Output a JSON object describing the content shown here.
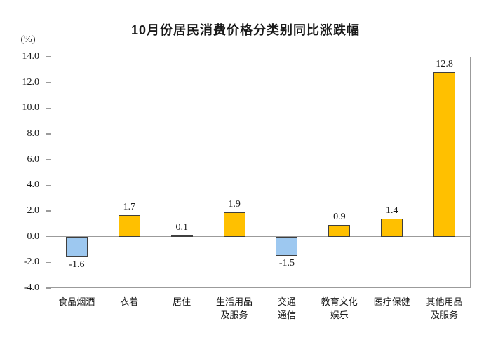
{
  "header": {
    "title": "10月份居民消费价格分类别同比涨跌幅",
    "unit_label": "(%)"
  },
  "chart_data": {
    "type": "bar",
    "title": "10月份居民消费价格分类别同比涨跌幅",
    "ylabel": "(%)",
    "xlabel": "",
    "categories": [
      "食品烟酒",
      "衣着",
      "居住",
      "生活用品及服务",
      "交通通信",
      "教育文化娱乐",
      "医疗保健",
      "其他用品及服务"
    ],
    "category_display": [
      "食品烟酒",
      "衣着",
      "居住",
      "生活用品\n及服务",
      "交通\n通信",
      "教育文化\n娱乐",
      "医疗保健",
      "其他用品\n及服务"
    ],
    "values": [
      -1.6,
      1.7,
      0.1,
      1.9,
      -1.5,
      0.9,
      1.4,
      12.8
    ],
    "value_labels": [
      "-1.6",
      "1.7",
      "0.1",
      "1.9",
      "-1.5",
      "0.9",
      "1.4",
      "12.8"
    ],
    "yticks": [
      14.0,
      12.0,
      10.0,
      8.0,
      6.0,
      4.0,
      2.0,
      0.0,
      -2.0,
      -4.0
    ],
    "ylim": [
      -4.0,
      14.0
    ],
    "grid": false,
    "legend": "none",
    "colors": {
      "positive_bar": "#FFC000",
      "negative_bar": "#9DC8F0",
      "bar_border": "#3F3F3F",
      "axis": "#9B9B9B",
      "text": "#1A1A1A"
    }
  }
}
